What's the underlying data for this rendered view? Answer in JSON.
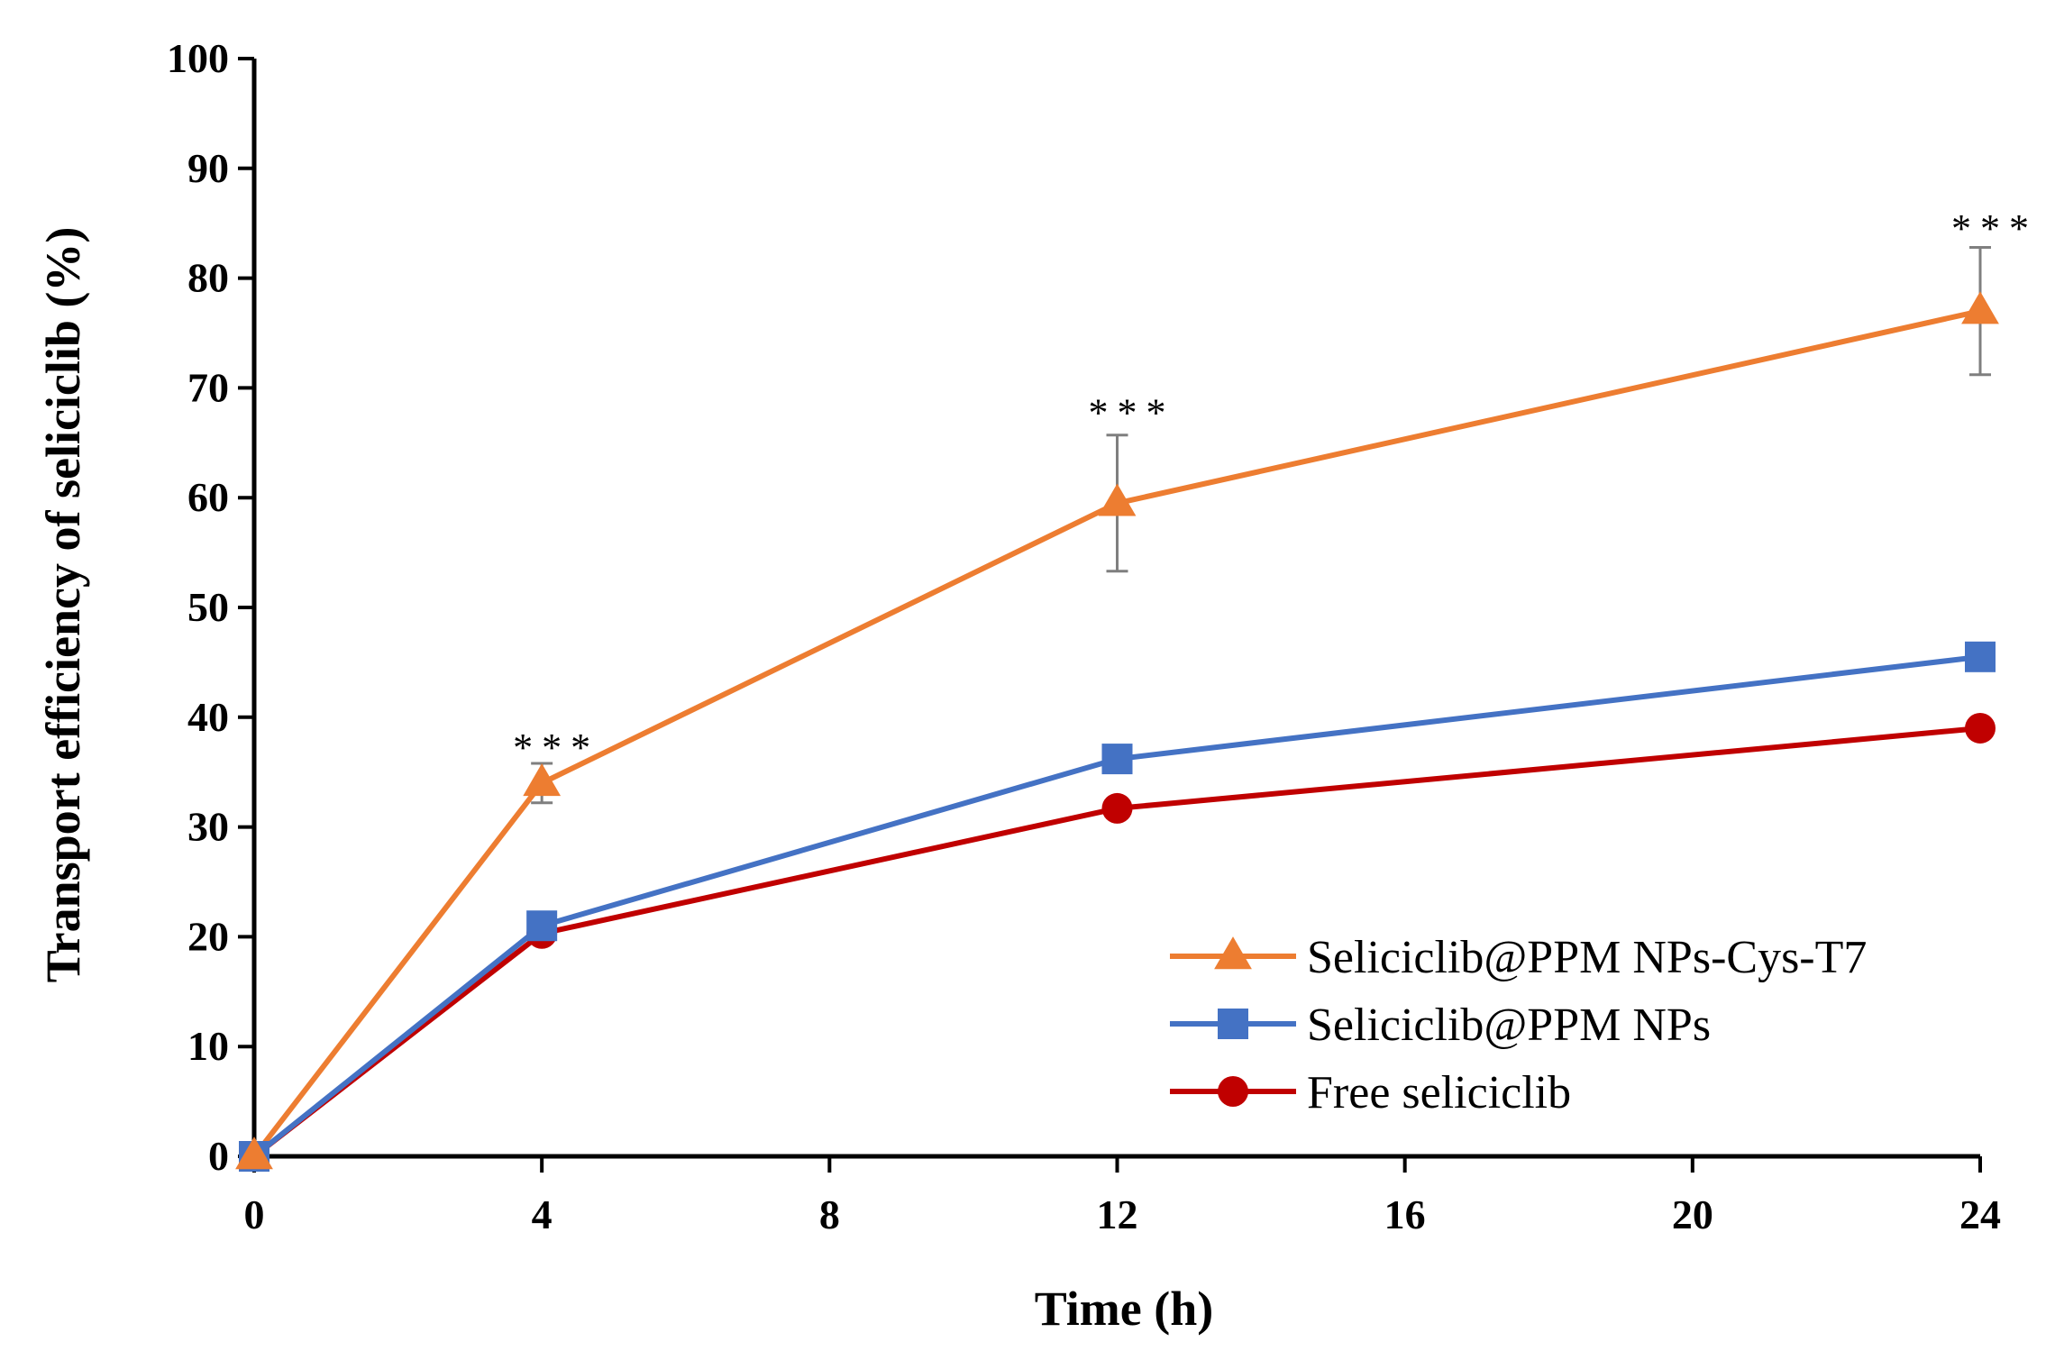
{
  "chart_data": {
    "type": "line",
    "xlabel": "Time (h)",
    "ylabel": "Transport efficiency of seliciclib (%)",
    "xlim": [
      0,
      24
    ],
    "ylim": [
      0,
      100
    ],
    "x_ticks": [
      0,
      4,
      8,
      12,
      16,
      20,
      24
    ],
    "y_ticks": [
      0,
      10,
      20,
      30,
      40,
      50,
      60,
      70,
      80,
      90,
      100
    ],
    "grid": false,
    "legend_position": "bottom-right",
    "series": [
      {
        "name": "Seliciclib@PPM NPs-Cys-T7",
        "color": "#ED7D31",
        "marker": "triangle",
        "x": [
          0,
          4,
          12,
          24
        ],
        "y": [
          0,
          34,
          59.5,
          77
        ],
        "error": [
          0,
          1.8,
          6.2,
          5.8
        ]
      },
      {
        "name": "Seliciclib@PPM NPs",
        "color": "#4472C4",
        "marker": "square",
        "x": [
          0,
          4,
          12,
          24
        ],
        "y": [
          0,
          21,
          36.2,
          45.5
        ],
        "error": [
          0,
          0,
          0,
          0
        ]
      },
      {
        "name": "Free seliciclib",
        "color": "#C00000",
        "marker": "circle",
        "x": [
          0,
          4,
          12,
          24
        ],
        "y": [
          0,
          20.3,
          31.7,
          39
        ],
        "error": [
          0,
          0,
          0,
          0
        ]
      }
    ],
    "annotations": [
      {
        "text": "***",
        "x": 4,
        "y": 38.5
      },
      {
        "text": "***",
        "x": 12,
        "y": 69
      },
      {
        "text": "***",
        "x": 24,
        "y": 85.8
      }
    ]
  }
}
